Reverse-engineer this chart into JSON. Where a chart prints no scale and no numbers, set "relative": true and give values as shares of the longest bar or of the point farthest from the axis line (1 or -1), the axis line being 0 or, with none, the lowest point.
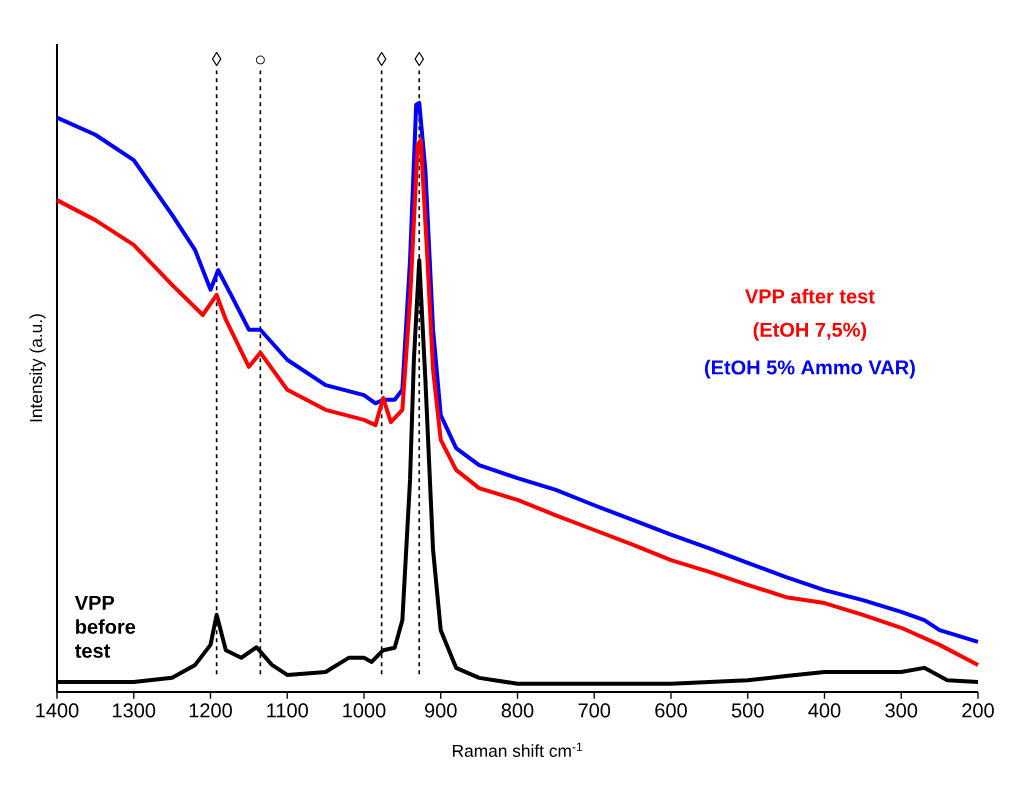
{
  "chart_data": {
    "type": "line",
    "relative": true,
    "xlabel": "Raman shift cm$^{-1}$",
    "ylabel": "Intensity (a.u.)",
    "xlim": [
      1400,
      200
    ],
    "xticks": [
      1400,
      1300,
      1200,
      1100,
      1000,
      900,
      800,
      700,
      600,
      500,
      400,
      300,
      200
    ],
    "annotations": [
      "VPP after test"
    ],
    "ref_lines": [
      {
        "axis": "x",
        "value": 1192,
        "label": "◊",
        "color": "#000000",
        "line_style": "dashed"
      },
      {
        "axis": "x",
        "value": 1135,
        "label": "○",
        "color": "#000000",
        "line_style": "dashed"
      },
      {
        "axis": "x",
        "value": 977,
        "label": "◊",
        "color": "#000000",
        "line_style": "dashed"
      },
      {
        "axis": "x",
        "value": 928,
        "label": "◊",
        "color": "#000000",
        "line_style": "dashed"
      }
    ],
    "series": [
      {
        "name": "(EtOH 5% Ammo VAR)",
        "color": "#0000ff",
        "x": [
          1400,
          1350,
          1300,
          1250,
          1220,
          1200,
          1190,
          1170,
          1150,
          1135,
          1100,
          1050,
          1000,
          985,
          975,
          960,
          950,
          940,
          932,
          928,
          920,
          910,
          900,
          880,
          850,
          800,
          750,
          700,
          650,
          600,
          550,
          500,
          450,
          400,
          350,
          300,
          270,
          250,
          200
        ],
        "values": [
          0.975,
          0.946,
          0.903,
          0.81,
          0.75,
          0.683,
          0.716,
          0.666,
          0.615,
          0.615,
          0.564,
          0.521,
          0.504,
          0.49,
          0.496,
          0.496,
          0.513,
          0.733,
          0.997,
          1.0,
          0.886,
          0.615,
          0.47,
          0.414,
          0.385,
          0.363,
          0.343,
          0.317,
          0.292,
          0.267,
          0.244,
          0.219,
          0.195,
          0.173,
          0.156,
          0.136,
          0.122,
          0.105,
          0.085
        ]
      },
      {
        "name": "(EtOH 7,5%)",
        "color": "#ff0000",
        "x": [
          1400,
          1350,
          1300,
          1250,
          1210,
          1192,
          1180,
          1150,
          1135,
          1100,
          1050,
          1000,
          985,
          975,
          965,
          950,
          940,
          930,
          926,
          918,
          910,
          900,
          880,
          850,
          800,
          750,
          700,
          650,
          600,
          550,
          500,
          450,
          400,
          350,
          300,
          250,
          200
        ],
        "values": [
          0.835,
          0.801,
          0.759,
          0.691,
          0.64,
          0.674,
          0.632,
          0.552,
          0.576,
          0.513,
          0.479,
          0.462,
          0.453,
          0.499,
          0.458,
          0.479,
          0.666,
          0.929,
          0.937,
          0.75,
          0.547,
          0.428,
          0.377,
          0.346,
          0.326,
          0.3,
          0.275,
          0.25,
          0.224,
          0.204,
          0.182,
          0.161,
          0.151,
          0.131,
          0.109,
          0.08,
          0.046
        ]
      },
      {
        "name": "VPP before test",
        "color": "#000000",
        "x": [
          1400,
          1300,
          1250,
          1220,
          1200,
          1192,
          1180,
          1160,
          1140,
          1120,
          1100,
          1050,
          1020,
          1000,
          990,
          975,
          960,
          950,
          940,
          935,
          928,
          920,
          910,
          900,
          880,
          850,
          800,
          700,
          600,
          500,
          450,
          400,
          300,
          270,
          240,
          200
        ],
        "values": [
          0.017,
          0.017,
          0.024,
          0.046,
          0.08,
          0.131,
          0.071,
          0.058,
          0.076,
          0.046,
          0.029,
          0.034,
          0.058,
          0.058,
          0.051,
          0.071,
          0.075,
          0.122,
          0.36,
          0.564,
          0.733,
          0.53,
          0.241,
          0.105,
          0.041,
          0.024,
          0.014,
          0.014,
          0.014,
          0.02,
          0.027,
          0.034,
          0.034,
          0.041,
          0.02,
          0.017
        ]
      }
    ]
  }
}
